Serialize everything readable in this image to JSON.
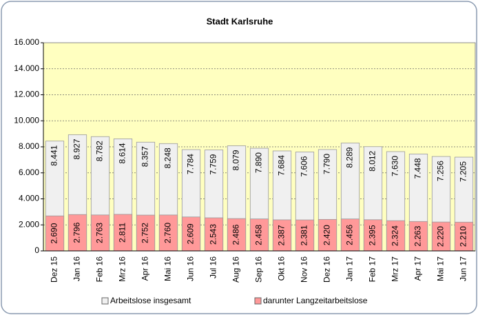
{
  "chart_data": {
    "type": "bar",
    "title": "Stadt Karlsruhe",
    "categories": [
      "Dez 15",
      "Jan 16",
      "Feb 16",
      "Mrz 16",
      "Apr 16",
      "Mai 16",
      "Jun 16",
      "Jul 16",
      "Aug 16",
      "Sep 16",
      "Okt 16",
      "Nov 16",
      "Dez 16",
      "Jan 17",
      "Feb 17",
      "Mrz 17",
      "Apr 17",
      "Mai 17",
      "Jun 17"
    ],
    "series": [
      {
        "name": "Arbeitslose insgesamt",
        "color": "#f0f0f0",
        "values": [
          8441,
          8927,
          8782,
          8614,
          8357,
          8248,
          7784,
          7759,
          8079,
          7890,
          7684,
          7606,
          7790,
          8289,
          8012,
          7630,
          7448,
          7256,
          7205
        ],
        "value_labels": [
          "8.441",
          "8.927",
          "8.782",
          "8.614",
          "8.357",
          "8.248",
          "7.784",
          "7.759",
          "8.079",
          "7.890",
          "7.684",
          "7.606",
          "7.790",
          "8.289",
          "8.012",
          "7.630",
          "7.448",
          "7.256",
          "7.205"
        ]
      },
      {
        "name": "darunter Langzeitarbeitslose",
        "color": "#ff9999",
        "values": [
          2690,
          2796,
          2763,
          2811,
          2752,
          2760,
          2609,
          2543,
          2486,
          2458,
          2387,
          2381,
          2420,
          2456,
          2395,
          2324,
          2263,
          2220,
          2210
        ],
        "value_labels": [
          "2.690",
          "2.796",
          "2.763",
          "2.811",
          "2.752",
          "2.760",
          "2.609",
          "2.543",
          "2.486",
          "2.458",
          "2.387",
          "2.381",
          "2.420",
          "2.456",
          "2.395",
          "2.324",
          "2.263",
          "2.220",
          "2.210"
        ]
      }
    ],
    "ylim": [
      0,
      16000
    ],
    "yticks": [
      0,
      {
        "value": 2000,
        "label": "2.000"
      },
      {
        "value": 4000,
        "label": "4.000"
      },
      {
        "value": 6000,
        "label": "6.000"
      },
      {
        "value": 8000,
        "label": "8.000"
      },
      {
        "value": 10000,
        "label": "10.000"
      },
      {
        "value": 12000,
        "label": "12.000"
      },
      {
        "value": 14000,
        "label": "14.000"
      },
      {
        "value": 16000,
        "label": "16.000"
      }
    ],
    "grid": true,
    "plot_background": "#ffffc0",
    "legend": "bottom"
  }
}
